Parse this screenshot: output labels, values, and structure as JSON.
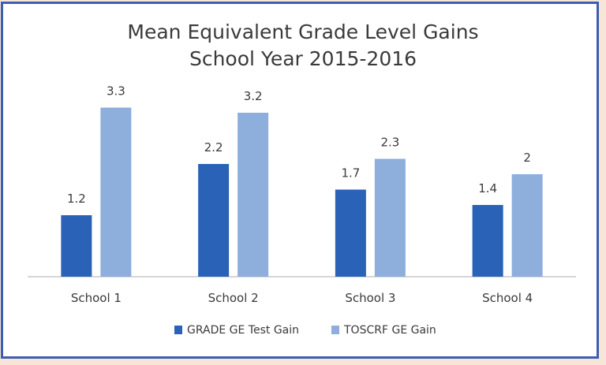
{
  "chart_data": {
    "type": "bar",
    "title": "Mean Equivalent  Grade Level Gains",
    "subtitle": "School  Year 2015-2016",
    "categories": [
      "School 1",
      "School 2",
      "School 3",
      "School 4"
    ],
    "series": [
      {
        "name": "GRADE GE Test Gain",
        "values": [
          1.2,
          2.2,
          1.7,
          1.4
        ],
        "labels": [
          "1.2",
          "2.2",
          "1.7",
          "1.4"
        ],
        "color": "#2a62b8"
      },
      {
        "name": "TOSCRF GE Gain",
        "values": [
          3.3,
          3.2,
          2.3,
          2
        ],
        "labels": [
          "3.3",
          "3.2",
          "2.3",
          "2"
        ],
        "color": "#8eaedc"
      }
    ],
    "xlabel": "",
    "ylabel": "",
    "ylim": [
      0,
      3.5
    ],
    "grid": false,
    "legend_position": "bottom",
    "colors": {
      "border": "#3b5fb0",
      "outer_background": "#f7e6d8",
      "axis": "#c8c8c8"
    }
  }
}
